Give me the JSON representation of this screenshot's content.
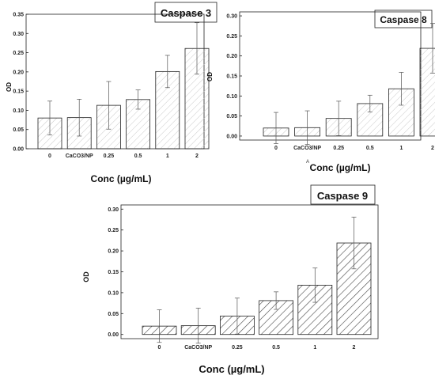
{
  "chart_data": [
    {
      "type": "bar",
      "title": "Caspase 3",
      "xlabel": "Conc (µg/mL)",
      "ylabel": "OD",
      "categories": [
        "0",
        "CaCO3/NP",
        "0.25",
        "0.5",
        "1",
        "2"
      ],
      "values": [
        0.08,
        0.081,
        0.113,
        0.128,
        0.201,
        0.261
      ],
      "errors": [
        0.044,
        0.048,
        0.062,
        0.025,
        0.042,
        0.067
      ],
      "ylim": [
        0,
        0.35
      ],
      "yticks": [
        "0.00",
        "0.05",
        "0.10",
        "0.15",
        "0.20",
        "0.25",
        "0.30",
        "0.35"
      ],
      "fill": "hatched",
      "hatch_color": "#c8c8c8"
    },
    {
      "type": "bar",
      "title": "Caspase 8",
      "xlabel": "Conc (µg/mL)",
      "ylabel": "OD",
      "categories": [
        "0",
        "CaCO3/NP",
        "0.25",
        "0.5",
        "1",
        "2"
      ],
      "values": [
        0.02,
        0.021,
        0.044,
        0.081,
        0.118,
        0.219
      ],
      "errors": [
        0.039,
        0.042,
        0.043,
        0.021,
        0.041,
        0.062
      ],
      "ylim": [
        -0.01,
        0.31
      ],
      "yticks": [
        "0.00",
        "0.05",
        "0.10",
        "0.15",
        "0.20",
        "0.25",
        "0.30"
      ],
      "fill": "hatched",
      "hatch_color": "#c8c8c8",
      "annotation": "A"
    },
    {
      "type": "bar",
      "title": "Caspase 9",
      "xlabel": "Conc (µg/mL)",
      "ylabel": "OD",
      "categories": [
        "0",
        "CaCO3/NP",
        "0.25",
        "0.5",
        "1",
        "2"
      ],
      "values": [
        0.02,
        0.021,
        0.044,
        0.081,
        0.118,
        0.219
      ],
      "errors": [
        0.039,
        0.042,
        0.043,
        0.021,
        0.041,
        0.062
      ],
      "ylim": [
        -0.01,
        0.31
      ],
      "yticks": [
        "0.00",
        "0.05",
        "0.10",
        "0.15",
        "0.20",
        "0.25",
        "0.30"
      ],
      "fill": "hatched",
      "hatch_color": "#444444"
    }
  ]
}
